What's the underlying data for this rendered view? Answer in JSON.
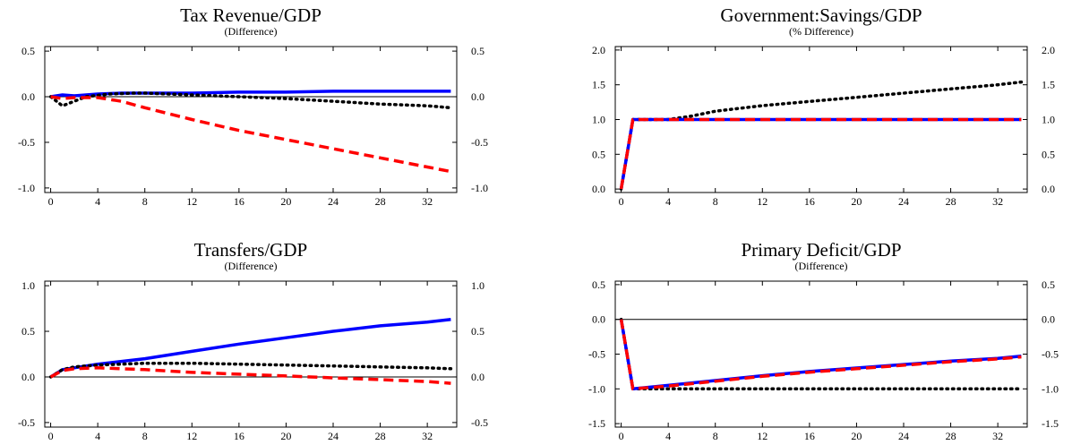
{
  "chart_data": [
    {
      "type": "line",
      "title": "Tax Revenue/GDP",
      "subtitle": "(Difference)",
      "xlim": [
        -0.5,
        34.5
      ],
      "ylim": [
        -1.05,
        0.55
      ],
      "x_ticks": [
        0,
        4,
        8,
        12,
        16,
        20,
        24,
        28,
        32
      ],
      "x_tick_labels": [
        "0",
        "4",
        "8",
        "12",
        "16",
        "20",
        "24",
        "28",
        "32"
      ],
      "y_ticks": [
        -1.0,
        -0.5,
        0.0,
        0.5
      ],
      "y_tick_labels": [
        "-1.0",
        "-0.5",
        "0.0",
        "0.5"
      ],
      "zero_line": true,
      "series": [
        {
          "color": "#0000ff",
          "dash": "solid",
          "x": [
            0,
            1,
            2,
            4,
            6,
            8,
            12,
            16,
            20,
            24,
            28,
            32,
            34
          ],
          "y": [
            0.0,
            0.02,
            0.01,
            0.03,
            0.04,
            0.04,
            0.04,
            0.05,
            0.05,
            0.06,
            0.06,
            0.06,
            0.06
          ]
        },
        {
          "color": "#000000",
          "dash": "dotted",
          "x": [
            0,
            1,
            2,
            3,
            5,
            7,
            8,
            12,
            16,
            20,
            24,
            28,
            32,
            34
          ],
          "y": [
            0.0,
            -0.1,
            -0.05,
            0.0,
            0.03,
            0.04,
            0.04,
            0.02,
            0.0,
            -0.02,
            -0.05,
            -0.08,
            -0.1,
            -0.12
          ]
        },
        {
          "color": "#ff0000",
          "dash": "dashed",
          "x": [
            0,
            1,
            2,
            4,
            6,
            8,
            12,
            16,
            20,
            24,
            28,
            32,
            34
          ],
          "y": [
            0.0,
            -0.02,
            -0.01,
            -0.01,
            -0.05,
            -0.12,
            -0.25,
            -0.37,
            -0.47,
            -0.57,
            -0.67,
            -0.77,
            -0.82
          ]
        }
      ]
    },
    {
      "type": "line",
      "title": "Government:Savings/GDP",
      "subtitle": "(% Difference)",
      "xlim": [
        -0.5,
        34.5
      ],
      "ylim": [
        -0.05,
        2.05
      ],
      "x_ticks": [
        0,
        4,
        8,
        12,
        16,
        20,
        24,
        28,
        32
      ],
      "x_tick_labels": [
        "0",
        "4",
        "8",
        "12",
        "16",
        "20",
        "24",
        "28",
        "32"
      ],
      "y_ticks": [
        0.0,
        0.5,
        1.0,
        1.5,
        2.0
      ],
      "y_tick_labels": [
        "0.0",
        "0.5",
        "1.0",
        "1.5",
        "2.0"
      ],
      "zero_line": false,
      "series": [
        {
          "color": "#000000",
          "dash": "dotted",
          "x": [
            0,
            1,
            4,
            6,
            8,
            12,
            16,
            20,
            24,
            28,
            32,
            34
          ],
          "y": [
            0.0,
            1.0,
            1.0,
            1.05,
            1.12,
            1.2,
            1.26,
            1.32,
            1.38,
            1.44,
            1.5,
            1.54
          ]
        },
        {
          "color": "#0000ff",
          "dash": "solid",
          "x": [
            0,
            1,
            4,
            8,
            12,
            16,
            20,
            24,
            28,
            32,
            34
          ],
          "y": [
            0.0,
            1.0,
            1.0,
            1.0,
            1.0,
            1.0,
            1.0,
            1.0,
            1.0,
            1.0,
            1.0
          ]
        },
        {
          "color": "#ff0000",
          "dash": "dashed",
          "x": [
            0,
            1,
            4,
            8,
            12,
            16,
            20,
            24,
            28,
            32,
            34
          ],
          "y": [
            0.0,
            1.0,
            1.0,
            1.0,
            1.0,
            1.0,
            1.0,
            1.0,
            1.0,
            1.0,
            1.0
          ]
        }
      ]
    },
    {
      "type": "line",
      "title": "Transfers/GDP",
      "subtitle": "(Difference)",
      "xlim": [
        -0.5,
        34.5
      ],
      "ylim": [
        -0.55,
        1.05
      ],
      "x_ticks": [
        0,
        4,
        8,
        12,
        16,
        20,
        24,
        28,
        32
      ],
      "x_tick_labels": [
        "0",
        "4",
        "8",
        "12",
        "16",
        "20",
        "24",
        "28",
        "32"
      ],
      "y_ticks": [
        -0.5,
        0.0,
        0.5,
        1.0
      ],
      "y_tick_labels": [
        "-0.5",
        "0.0",
        "0.5",
        "1.0"
      ],
      "zero_line": true,
      "series": [
        {
          "color": "#0000ff",
          "dash": "solid",
          "x": [
            0,
            1,
            2,
            4,
            8,
            12,
            16,
            20,
            24,
            28,
            32,
            34
          ],
          "y": [
            0.0,
            0.08,
            0.1,
            0.14,
            0.2,
            0.28,
            0.36,
            0.43,
            0.5,
            0.56,
            0.6,
            0.63
          ]
        },
        {
          "color": "#000000",
          "dash": "dotted",
          "x": [
            0,
            1,
            2,
            4,
            8,
            12,
            16,
            20,
            24,
            28,
            32,
            34
          ],
          "y": [
            0.0,
            0.08,
            0.11,
            0.13,
            0.15,
            0.15,
            0.14,
            0.13,
            0.12,
            0.11,
            0.1,
            0.09
          ]
        },
        {
          "color": "#ff0000",
          "dash": "dashed",
          "x": [
            0,
            1,
            2,
            4,
            8,
            12,
            16,
            20,
            24,
            28,
            32,
            34
          ],
          "y": [
            0.0,
            0.07,
            0.09,
            0.1,
            0.08,
            0.05,
            0.03,
            0.01,
            -0.01,
            -0.03,
            -0.05,
            -0.07
          ]
        }
      ]
    },
    {
      "type": "line",
      "title": "Primary Deficit/GDP",
      "subtitle": "(Difference)",
      "xlim": [
        -0.5,
        34.5
      ],
      "ylim": [
        -1.55,
        0.55
      ],
      "x_ticks": [
        0,
        4,
        8,
        12,
        16,
        20,
        24,
        28,
        32
      ],
      "x_tick_labels": [
        "0",
        "4",
        "8",
        "12",
        "16",
        "20",
        "24",
        "28",
        "32"
      ],
      "y_ticks": [
        -1.5,
        -1.0,
        -0.5,
        0.0,
        0.5
      ],
      "y_tick_labels": [
        "-1.5",
        "-1.0",
        "-0.5",
        "0.0",
        "0.5"
      ],
      "zero_line": true,
      "series": [
        {
          "color": "#000000",
          "dash": "dotted",
          "x": [
            0,
            1,
            4,
            8,
            12,
            16,
            20,
            24,
            28,
            32,
            34
          ],
          "y": [
            0.0,
            -1.0,
            -1.0,
            -1.0,
            -1.0,
            -1.0,
            -1.0,
            -1.0,
            -1.0,
            -1.0,
            -1.0
          ]
        },
        {
          "color": "#0000ff",
          "dash": "solid",
          "x": [
            0,
            1,
            4,
            8,
            12,
            16,
            20,
            24,
            28,
            32,
            34
          ],
          "y": [
            0.0,
            -1.0,
            -0.95,
            -0.88,
            -0.81,
            -0.75,
            -0.7,
            -0.65,
            -0.6,
            -0.56,
            -0.53
          ]
        },
        {
          "color": "#ff0000",
          "dash": "dashed",
          "x": [
            0,
            1,
            4,
            8,
            12,
            16,
            20,
            24,
            28,
            32,
            34
          ],
          "y": [
            0.0,
            -1.0,
            -0.96,
            -0.89,
            -0.82,
            -0.76,
            -0.71,
            -0.66,
            -0.61,
            -0.57,
            -0.54
          ]
        }
      ]
    }
  ]
}
